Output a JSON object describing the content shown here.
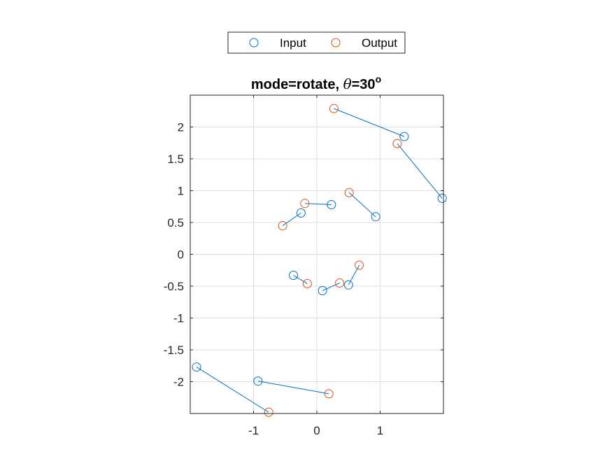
{
  "chart_data": {
    "type": "scatter",
    "title": {
      "prefix": "mode=rotate, ",
      "symbol": "θ",
      "suffix": "=30",
      "superscript": "o"
    },
    "xlim": [
      -2,
      2
    ],
    "ylim": [
      -2.5,
      2.5
    ],
    "xticks": [
      -1,
      0,
      1
    ],
    "yticks": [
      -2,
      -1.5,
      -1,
      -0.5,
      0,
      0.5,
      1,
      1.5,
      2
    ],
    "grid": true,
    "legend": {
      "placement": "top-center",
      "orientation": "horizontal"
    },
    "colors": {
      "input": "#0072BD",
      "output": "#D95319",
      "line": "#0072BD"
    },
    "series": [
      {
        "name": "Input",
        "marker": "circle",
        "points": [
          [
            1.38,
            1.85
          ],
          [
            1.98,
            0.88
          ],
          [
            0.23,
            0.78
          ],
          [
            -0.25,
            0.65
          ],
          [
            0.93,
            0.59
          ],
          [
            -0.37,
            -0.33
          ],
          [
            0.09,
            -0.57
          ],
          [
            0.5,
            -0.48
          ],
          [
            -0.93,
            -1.99
          ],
          [
            -1.9,
            -1.77
          ]
        ]
      },
      {
        "name": "Output",
        "marker": "circle",
        "points": [
          [
            0.27,
            2.29
          ],
          [
            1.27,
            1.74
          ],
          [
            -0.19,
            0.8
          ],
          [
            -0.54,
            0.45
          ],
          [
            0.51,
            0.97
          ],
          [
            -0.15,
            -0.46
          ],
          [
            0.36,
            -0.45
          ],
          [
            0.67,
            -0.17
          ],
          [
            0.19,
            -2.19
          ],
          [
            -0.76,
            -2.48
          ]
        ]
      }
    ],
    "pairs_connected": true
  }
}
